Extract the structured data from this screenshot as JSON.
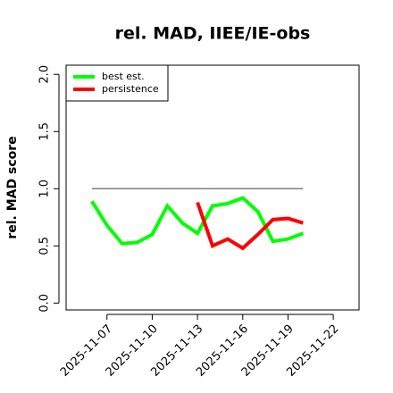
{
  "chart_data": {
    "type": "line",
    "title": "rel. MAD, IIEE/IE-obs",
    "y_label": "rel. MAD score",
    "x": [
      "2025-11-06",
      "2025-11-07",
      "2025-11-08",
      "2025-11-09",
      "2025-11-10",
      "2025-11-11",
      "2025-11-12",
      "2025-11-13",
      "2025-11-14",
      "2025-11-15",
      "2025-11-16",
      "2025-11-17",
      "2025-11-18",
      "2025-11-19",
      "2025-11-20"
    ],
    "series": [
      {
        "name": "best est.",
        "color": "#00ff00",
        "values": [
          0.89,
          0.68,
          0.52,
          0.53,
          0.6,
          0.85,
          0.7,
          0.61,
          0.85,
          0.87,
          0.92,
          0.8,
          0.54,
          0.56,
          0.61
        ]
      },
      {
        "name": "persistence",
        "color": "#ff0000",
        "values": [
          null,
          null,
          null,
          null,
          null,
          null,
          null,
          0.88,
          0.5,
          0.56,
          0.48,
          0.6,
          0.73,
          0.74,
          0.7
        ]
      }
    ],
    "reference_line": {
      "y": 1,
      "x": [
        "2025-11-06",
        "2025-11-20"
      ],
      "color": "#808080"
    },
    "xlim": [
      "2025-11-04T07:00",
      "2025-11-23T17:00"
    ],
    "xticks": [
      "2025-11-07",
      "2025-11-10",
      "2025-11-13",
      "2025-11-16",
      "2025-11-19",
      "2025-11-22"
    ],
    "ylim": [
      -0.06,
      2.08
    ],
    "yticks": [
      {
        "value": 0,
        "label": "0.0"
      },
      {
        "value": 0.5,
        "label": "0.5"
      },
      {
        "value": 1,
        "label": "1.0"
      },
      {
        "value": 1.5,
        "label": "1.5"
      },
      {
        "value": 2,
        "label": "2.0"
      }
    ],
    "legend": "top-left"
  }
}
